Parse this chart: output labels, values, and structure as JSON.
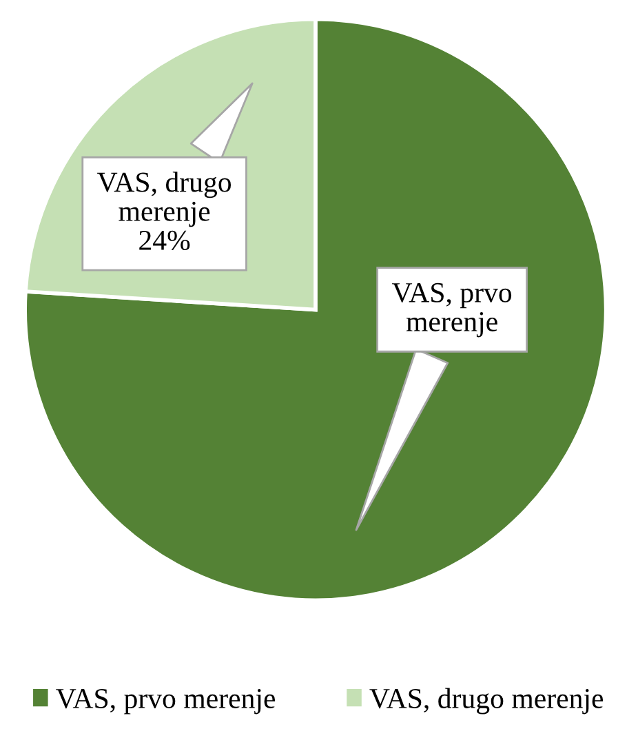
{
  "chart_data": {
    "type": "pie",
    "categories": [
      "VAS, prvo merenje",
      "VAS, drugo merenje"
    ],
    "values": [
      76,
      24
    ],
    "value_labels": [
      null,
      "24%"
    ],
    "colors": [
      "#548235",
      "#c5e0b4"
    ],
    "legend": "bottom"
  }
}
